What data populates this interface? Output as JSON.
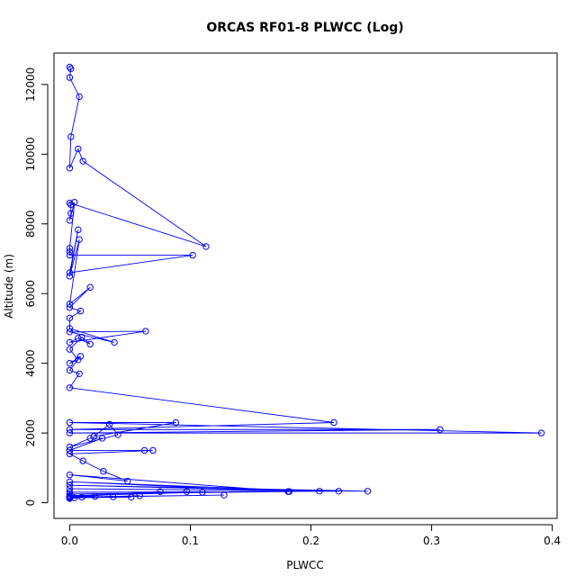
{
  "chart_data": {
    "type": "line",
    "title": "ORCAS RF01-8 PLWCC (Log)",
    "xlabel": "PLWCC",
    "ylabel": "Altitude (m)",
    "xlim": [
      -0.013,
      0.404
    ],
    "ylim": [
      -450,
      12900
    ],
    "x_ticks": [
      0,
      0.1,
      0.2,
      0.3,
      0.4
    ],
    "x_tick_labels": [
      "0.0",
      "0.1",
      "0.2",
      "0.3",
      "0.4"
    ],
    "y_ticks": [
      0,
      2000,
      4000,
      6000,
      8000,
      10000,
      12000
    ],
    "y_tick_labels": [
      "0",
      "2000",
      "4000",
      "6000",
      "8000",
      "10000",
      "12000"
    ],
    "grid": false,
    "legend": "none",
    "colors": {
      "series": "#0000ff",
      "axes": "#000000",
      "background": "#ffffff"
    },
    "marker": "open-circle",
    "series": [
      {
        "x": [
          0.0,
          0.001,
          0.0,
          0.008,
          0.001,
          0.0,
          0.007,
          0.011,
          0.113,
          0.0,
          0.001,
          0.001,
          0.0,
          0.004,
          0.0,
          0.0,
          0.0,
          0.102,
          0.0,
          0.007,
          0.0,
          0.008,
          0.0,
          0.017,
          0.0,
          0.009,
          0.0,
          0.0,
          0.037,
          0.0,
          0.063,
          0.0,
          0.007,
          0.017,
          0.01,
          0.0,
          0.007,
          0.0,
          0.009,
          0.0,
          0.008,
          0.0,
          0.219,
          0.0,
          0.307,
          0.0,
          0.391,
          0.0,
          0.088,
          0.02,
          0.033,
          0.04,
          0.0,
          0.017,
          0.027,
          0.0,
          0.062,
          0.069,
          0.0,
          0.011,
          0.028,
          0.048,
          0.0,
          0.181,
          0.0,
          0.207,
          0.0,
          0.247,
          0.0,
          0.223,
          0.0,
          0.182,
          0.0,
          0.11,
          0.0,
          0.097,
          0.0,
          0.075,
          0.0,
          0.128,
          0.0,
          0.051,
          0.0,
          0.058,
          0.0,
          0.036,
          0.0,
          0.021,
          0.0,
          0.01,
          0.0,
          0.004,
          0.0
        ],
        "y": [
          12500,
          12450,
          12200,
          11650,
          10500,
          9600,
          10150,
          9800,
          7350,
          8600,
          8550,
          8300,
          8100,
          8620,
          7300,
          7200,
          7100,
          7100,
          6600,
          7830,
          6500,
          7550,
          5700,
          6180,
          5600,
          5500,
          5300,
          5000,
          4600,
          4900,
          4920,
          4600,
          4720,
          4550,
          4750,
          4400,
          4100,
          4000,
          4200,
          3800,
          3700,
          3300,
          2300,
          2100,
          2100,
          2000,
          2000,
          2300,
          2300,
          1900,
          2250,
          1950,
          1600,
          1850,
          1850,
          1500,
          1500,
          1500,
          1400,
          1200,
          900,
          620,
          800,
          320,
          600,
          330,
          500,
          330,
          400,
          330,
          300,
          320,
          250,
          300,
          200,
          320,
          180,
          320,
          160,
          220,
          150,
          160,
          140,
          200,
          150,
          170,
          140,
          180,
          120,
          160,
          150,
          140,
          130
        ]
      }
    ]
  }
}
